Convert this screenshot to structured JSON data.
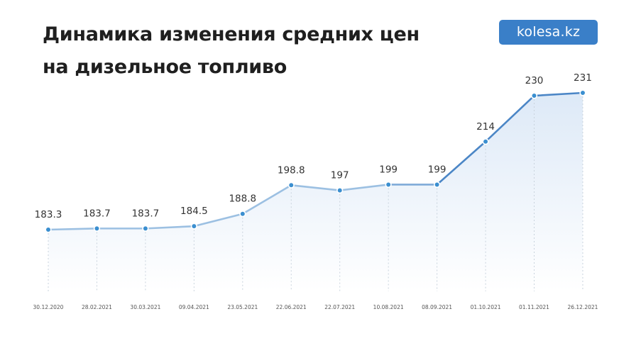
{
  "header": {
    "title_line1": "Динамика изменения средних цен",
    "title_line2": "на дизельное топливо",
    "logo_text": "kolesa.kz"
  },
  "colors": {
    "line_light": "#9cc0e2",
    "line_dark": "#4b86c6",
    "point": "#3b8fd0",
    "area": "#e4eef9",
    "logo_bg": "#3a7fc8"
  },
  "chart_data": {
    "type": "area",
    "title": "Динамика изменения средних цен на дизельное топливо",
    "categories": [
      "30.12.2020",
      "28.02.2021",
      "30.03.2021",
      "09.04.2021",
      "23.05.2021",
      "22.06.2021",
      "22.07.2021",
      "10.08.2021",
      "08.09.2021",
      "01.10.2021",
      "01.11.2021",
      "26.12.2021"
    ],
    "values": [
      183.3,
      183.7,
      183.7,
      184.5,
      188.8,
      198.8,
      197,
      199,
      199,
      214,
      230,
      231
    ],
    "value_labels": [
      "183.3",
      "183.7",
      "183.7",
      "184.5",
      "188.8",
      "198.8",
      "197",
      "199",
      "199",
      "214",
      "230",
      "231"
    ],
    "xlabel": "",
    "ylabel": "",
    "ylim": [
      160,
      235
    ],
    "grid": false,
    "legend": "none"
  }
}
